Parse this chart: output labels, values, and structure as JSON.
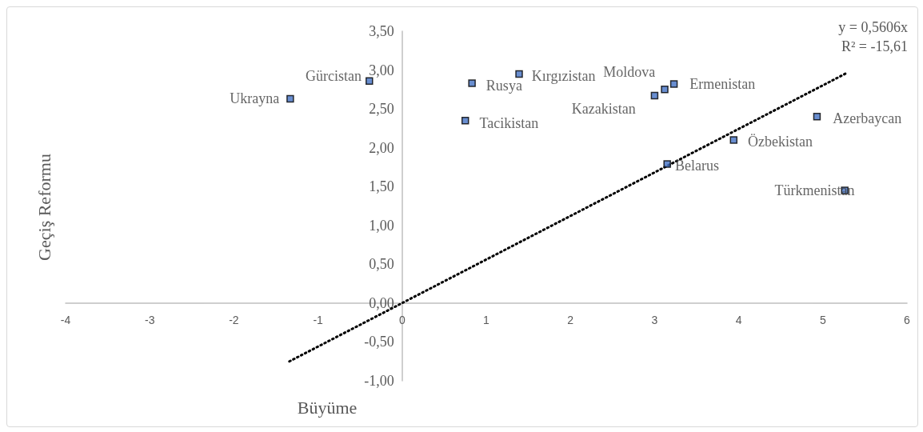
{
  "chart_data": {
    "type": "scatter",
    "xlabel": "Büyüme",
    "ylabel": "Geçiş Reformu",
    "annotations": [
      "y = 0,5606x",
      "R² = -15,61"
    ],
    "series": [
      {
        "color": "#4472c4",
        "x": [
          -1.33,
          -0.39,
          0.83,
          1.39,
          0.75,
          3.0,
          3.12,
          3.23,
          4.93,
          3.94,
          3.15,
          5.26
        ],
        "values": [
          2.63,
          2.86,
          2.83,
          2.95,
          2.35,
          2.67,
          2.75,
          2.82,
          2.4,
          2.1,
          1.79,
          1.45
        ],
        "value_labels": [
          "Ukrayna",
          "Gürcistan",
          "Rusya",
          "Kırgızistan",
          "Tacikistan",
          "Kazakistan",
          "Moldova",
          "Ermenistan",
          "Azerbaycan",
          "Özbekistan",
          "Belarus",
          "Türkmenistan"
        ]
      },
      {
        "type": "line",
        "color": "#000000",
        "x": [
          -1.34,
          5.28
        ],
        "values": [
          -0.75,
          2.96
        ],
        "line_style": "dotted",
        "marker": "none"
      }
    ],
    "marker": "square",
    "xlim": [
      -4,
      6
    ],
    "xticks": [
      -4,
      -3,
      -2,
      -1,
      0,
      1,
      2,
      3,
      4,
      5,
      6
    ],
    "ylim": [
      -1,
      3.5
    ],
    "yticks": [
      {
        "value": -1,
        "label": "-1,00"
      },
      {
        "value": -0.5,
        "label": "-0,50"
      },
      {
        "value": 0,
        "label": "0,00"
      },
      {
        "value": 0.5,
        "label": "0,50"
      },
      {
        "value": 1,
        "label": "1,00"
      },
      {
        "value": 1.5,
        "label": "1,50"
      },
      {
        "value": 2,
        "label": "2,00"
      },
      {
        "value": 2.5,
        "label": "2,50"
      },
      {
        "value": 3,
        "label": "3,00"
      },
      {
        "value": 3.5,
        "label": "3,50"
      }
    ],
    "grid": false
  }
}
